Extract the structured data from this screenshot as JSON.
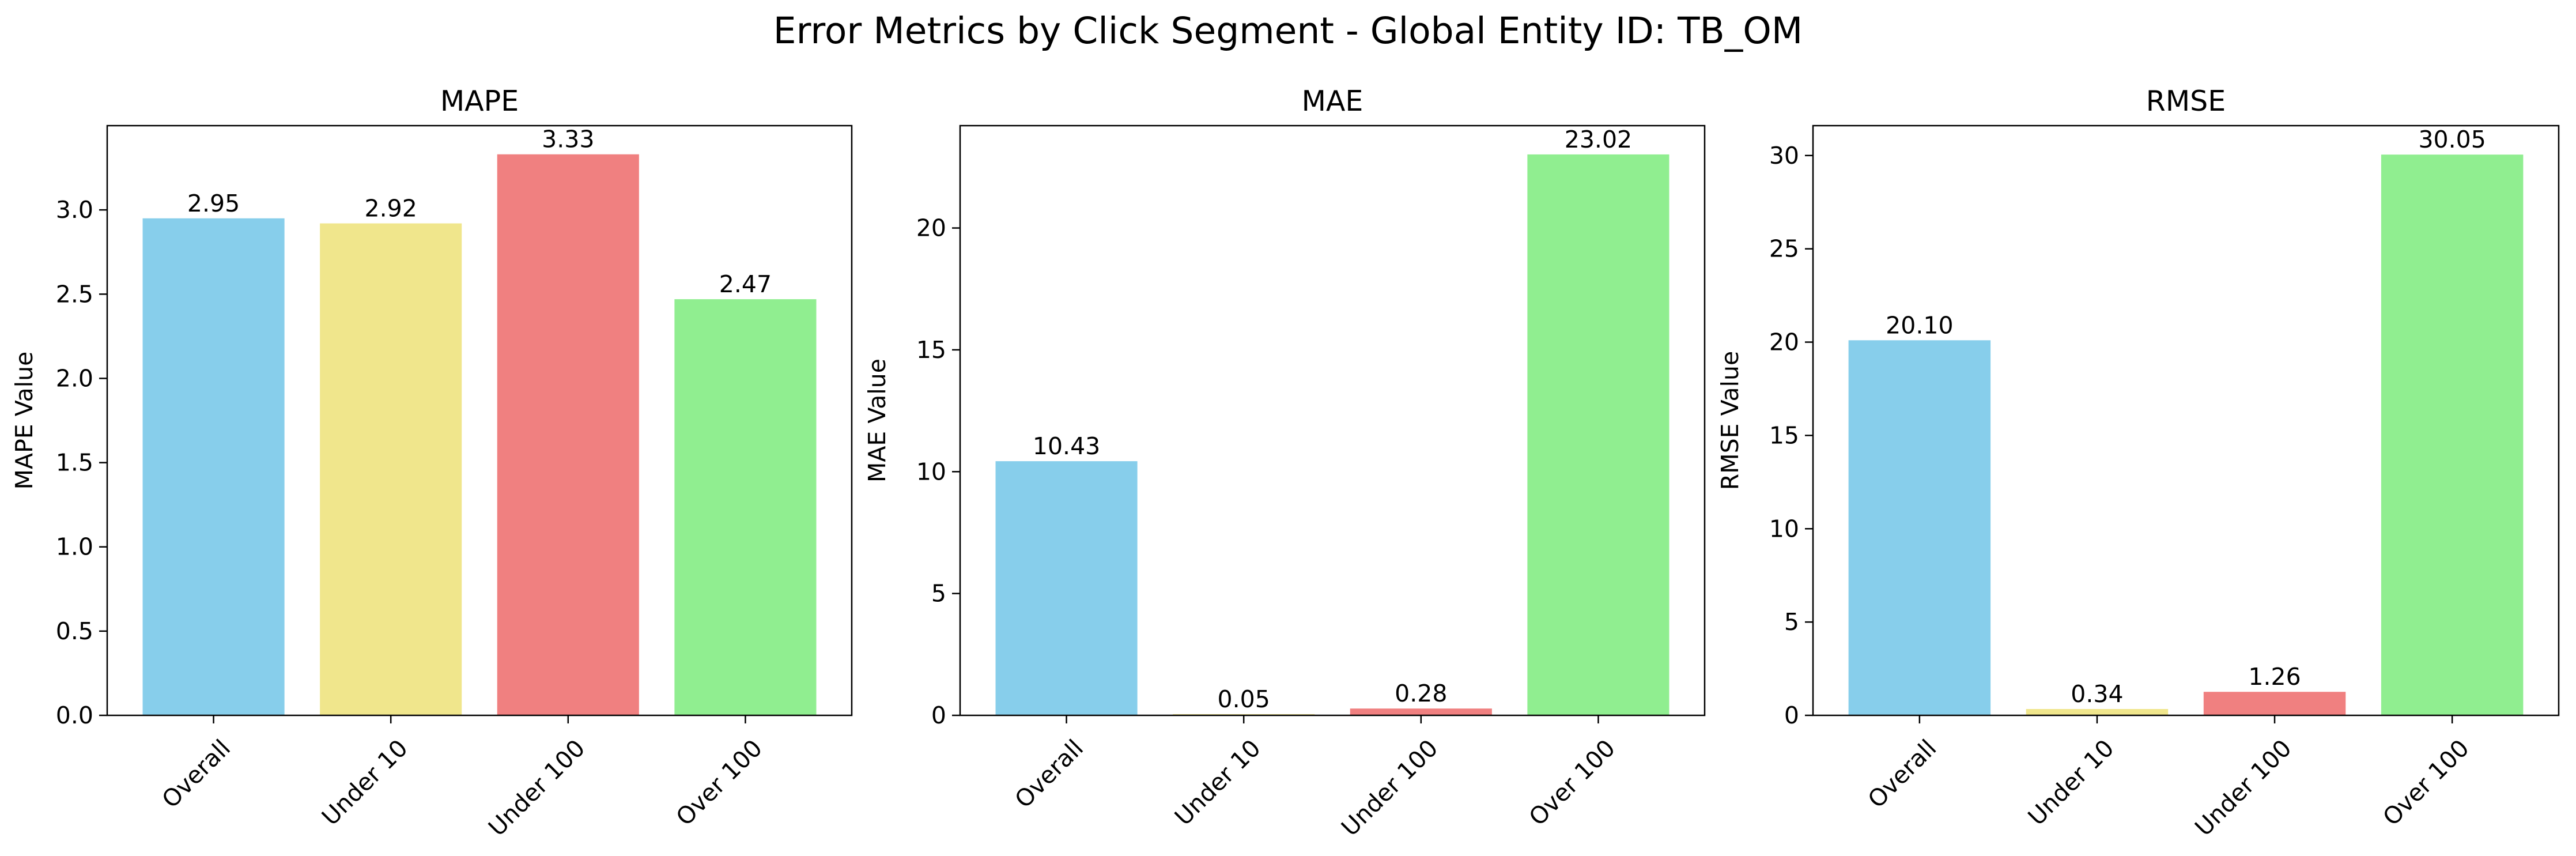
{
  "figure": {
    "suptitle": "Error Metrics by Click Segment - Global Entity ID: TB_OM"
  },
  "colors": {
    "bars": [
      "#87ceeb",
      "#f0e68c",
      "#f08080",
      "#90ee90"
    ],
    "axis": "#000000",
    "background": "#ffffff"
  },
  "chart_data": [
    {
      "type": "bar",
      "title": "MAPE",
      "xlabel": "",
      "ylabel": "MAPE Value",
      "categories": [
        "Overall",
        "Under 10",
        "Under 100",
        "Over 100"
      ],
      "values": [
        2.95,
        2.92,
        3.33,
        2.47
      ],
      "value_labels": [
        "2.95",
        "2.92",
        "3.33",
        "2.47"
      ],
      "ylim": [
        0,
        3.5
      ],
      "yticks": [
        0.0,
        0.5,
        1.0,
        1.5,
        2.0,
        2.5,
        3.0
      ],
      "ytick_labels": [
        "0.0",
        "0.5",
        "1.0",
        "1.5",
        "2.0",
        "2.5",
        "3.0"
      ],
      "grid": false,
      "legend": "none"
    },
    {
      "type": "bar",
      "title": "MAE",
      "xlabel": "",
      "ylabel": "MAE Value",
      "categories": [
        "Overall",
        "Under 10",
        "Under 100",
        "Over 100"
      ],
      "values": [
        10.43,
        0.05,
        0.28,
        23.02
      ],
      "value_labels": [
        "10.43",
        "0.05",
        "0.28",
        "23.02"
      ],
      "ylim": [
        0,
        24.2
      ],
      "yticks": [
        0,
        5,
        10,
        15,
        20
      ],
      "ytick_labels": [
        "0",
        "5",
        "10",
        "15",
        "20"
      ],
      "grid": false,
      "legend": "none"
    },
    {
      "type": "bar",
      "title": "RMSE",
      "xlabel": "",
      "ylabel": "RMSE Value",
      "categories": [
        "Overall",
        "Under 10",
        "Under 100",
        "Over 100"
      ],
      "values": [
        20.1,
        0.34,
        1.26,
        30.05
      ],
      "value_labels": [
        "20.10",
        "0.34",
        "1.26",
        "30.05"
      ],
      "ylim": [
        0,
        31.6
      ],
      "yticks": [
        0,
        5,
        10,
        15,
        20,
        25,
        30
      ],
      "ytick_labels": [
        "0",
        "5",
        "10",
        "15",
        "20",
        "25",
        "30"
      ],
      "grid": false,
      "legend": "none"
    }
  ]
}
